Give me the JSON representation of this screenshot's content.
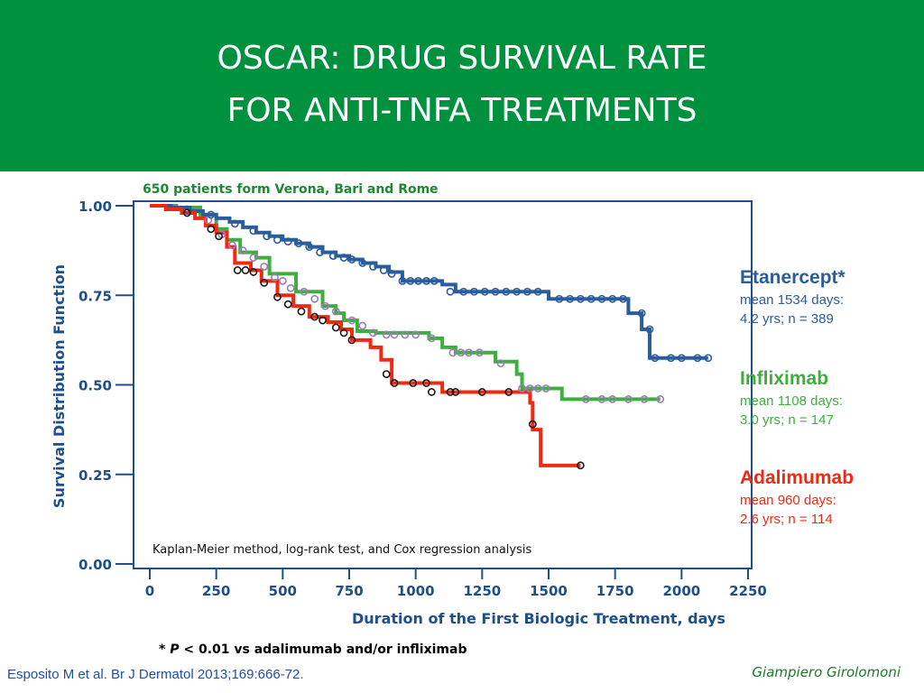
{
  "slide": {
    "title_line1": "OSCAR: DRUG SURVIVAL RATE",
    "title_line2": "FOR ANTI-TNFA TREATMENTS",
    "subtitle": "650 patients form Verona, Bari and Rome",
    "method_note": "Kaplan-Meier method, log-rank test, and Cox regression analysis",
    "footnote_prefix": "* ",
    "footnote_p": "P",
    "footnote_rest": " < 0.01 vs adalimumab and/or infliximab",
    "citation": "Esposito M et al. Br J Dermatol 2013;169:666-72.",
    "presenter": "Giampiero Girolomoni",
    "colors": {
      "banner": "#00913f",
      "axis": "#1f4f8a",
      "etanercept": "#2a5d9c",
      "infliximab": "#3fae3f",
      "adalimumab": "#f02a12",
      "censor_infliximab": "#9b7cc0"
    }
  },
  "chart_data": {
    "type": "line",
    "subtype": "kaplan-meier step",
    "xlabel": "Duration of the First Biologic Treatment, days",
    "ylabel": "Survival Distribution Function",
    "xlim": [
      0,
      2250
    ],
    "ylim": [
      0,
      1
    ],
    "x_ticks": [
      "0",
      "250",
      "500",
      "750",
      "1000",
      "1250",
      "1500",
      "1750",
      "2000",
      "2250"
    ],
    "y_ticks": [
      "0.00",
      "0.25",
      "0.50",
      "0.75",
      "1.00"
    ],
    "series": [
      {
        "name": "Etanercept*",
        "detail1": "mean 1534 days:",
        "detail2": "4.2 yrs; n = 389",
        "color": "#2a5d9c",
        "steps": [
          [
            0,
            1.0
          ],
          [
            80,
            0.995
          ],
          [
            150,
            0.985
          ],
          [
            200,
            0.975
          ],
          [
            250,
            0.965
          ],
          [
            300,
            0.955
          ],
          [
            350,
            0.94
          ],
          [
            400,
            0.925
          ],
          [
            450,
            0.915
          ],
          [
            500,
            0.905
          ],
          [
            550,
            0.895
          ],
          [
            600,
            0.885
          ],
          [
            650,
            0.87
          ],
          [
            700,
            0.86
          ],
          [
            750,
            0.85
          ],
          [
            800,
            0.84
          ],
          [
            850,
            0.83
          ],
          [
            900,
            0.815
          ],
          [
            950,
            0.79
          ],
          [
            1100,
            0.78
          ],
          [
            1150,
            0.76
          ],
          [
            1500,
            0.74
          ],
          [
            1800,
            0.7
          ],
          [
            1850,
            0.655
          ],
          [
            1880,
            0.575
          ],
          [
            2100,
            0.575
          ]
        ],
        "censors": [
          [
            140,
            0.99
          ],
          [
            230,
            0.975
          ],
          [
            320,
            0.95
          ],
          [
            390,
            0.93
          ],
          [
            440,
            0.915
          ],
          [
            480,
            0.905
          ],
          [
            520,
            0.9
          ],
          [
            560,
            0.895
          ],
          [
            600,
            0.885
          ],
          [
            640,
            0.87
          ],
          [
            690,
            0.86
          ],
          [
            730,
            0.855
          ],
          [
            760,
            0.85
          ],
          [
            800,
            0.84
          ],
          [
            840,
            0.83
          ],
          [
            880,
            0.82
          ],
          [
            910,
            0.81
          ],
          [
            950,
            0.79
          ],
          [
            980,
            0.79
          ],
          [
            1010,
            0.79
          ],
          [
            1040,
            0.79
          ],
          [
            1070,
            0.79
          ],
          [
            1130,
            0.76
          ],
          [
            1180,
            0.76
          ],
          [
            1220,
            0.76
          ],
          [
            1260,
            0.76
          ],
          [
            1300,
            0.76
          ],
          [
            1340,
            0.76
          ],
          [
            1380,
            0.76
          ],
          [
            1420,
            0.76
          ],
          [
            1460,
            0.76
          ],
          [
            1540,
            0.74
          ],
          [
            1580,
            0.74
          ],
          [
            1620,
            0.74
          ],
          [
            1660,
            0.74
          ],
          [
            1700,
            0.74
          ],
          [
            1740,
            0.74
          ],
          [
            1780,
            0.74
          ],
          [
            1850,
            0.7
          ],
          [
            1880,
            0.655
          ],
          [
            1900,
            0.575
          ],
          [
            1960,
            0.575
          ],
          [
            2000,
            0.575
          ],
          [
            2060,
            0.575
          ],
          [
            2100,
            0.575
          ]
        ]
      },
      {
        "name": "Infliximab",
        "detail1": "mean 1108 days:",
        "detail2": "3.0 yrs; n = 147",
        "color": "#3fae3f",
        "censor_color": "#9b7cc0",
        "steps": [
          [
            0,
            1.0
          ],
          [
            100,
            0.995
          ],
          [
            190,
            0.975
          ],
          [
            250,
            0.935
          ],
          [
            290,
            0.905
          ],
          [
            340,
            0.87
          ],
          [
            400,
            0.855
          ],
          [
            450,
            0.81
          ],
          [
            550,
            0.76
          ],
          [
            650,
            0.72
          ],
          [
            700,
            0.7
          ],
          [
            730,
            0.68
          ],
          [
            780,
            0.65
          ],
          [
            850,
            0.645
          ],
          [
            1050,
            0.63
          ],
          [
            1100,
            0.605
          ],
          [
            1150,
            0.59
          ],
          [
            1300,
            0.565
          ],
          [
            1380,
            0.53
          ],
          [
            1400,
            0.49
          ],
          [
            1550,
            0.46
          ],
          [
            1920,
            0.46
          ]
        ],
        "censors": [
          [
            220,
            0.96
          ],
          [
            270,
            0.92
          ],
          [
            310,
            0.89
          ],
          [
            350,
            0.875
          ],
          [
            390,
            0.855
          ],
          [
            430,
            0.83
          ],
          [
            470,
            0.8
          ],
          [
            500,
            0.79
          ],
          [
            530,
            0.77
          ],
          [
            580,
            0.76
          ],
          [
            620,
            0.74
          ],
          [
            660,
            0.72
          ],
          [
            700,
            0.705
          ],
          [
            760,
            0.68
          ],
          [
            800,
            0.665
          ],
          [
            840,
            0.645
          ],
          [
            890,
            0.64
          ],
          [
            920,
            0.64
          ],
          [
            960,
            0.64
          ],
          [
            1000,
            0.64
          ],
          [
            1060,
            0.63
          ],
          [
            1140,
            0.59
          ],
          [
            1170,
            0.59
          ],
          [
            1200,
            0.59
          ],
          [
            1240,
            0.59
          ],
          [
            1320,
            0.56
          ],
          [
            1400,
            0.49
          ],
          [
            1430,
            0.49
          ],
          [
            1460,
            0.49
          ],
          [
            1490,
            0.49
          ],
          [
            1640,
            0.46
          ],
          [
            1700,
            0.46
          ],
          [
            1740,
            0.46
          ],
          [
            1800,
            0.46
          ],
          [
            1860,
            0.46
          ],
          [
            1920,
            0.46
          ]
        ]
      },
      {
        "name": "Adalimumab",
        "detail1": "mean 960 days:",
        "detail2": "2.6 yrs; n = 114",
        "color": "#f02a12",
        "steps": [
          [
            0,
            1.0
          ],
          [
            60,
            0.99
          ],
          [
            120,
            0.98
          ],
          [
            170,
            0.965
          ],
          [
            210,
            0.945
          ],
          [
            250,
            0.925
          ],
          [
            290,
            0.885
          ],
          [
            320,
            0.84
          ],
          [
            380,
            0.82
          ],
          [
            420,
            0.79
          ],
          [
            480,
            0.75
          ],
          [
            540,
            0.72
          ],
          [
            600,
            0.69
          ],
          [
            670,
            0.675
          ],
          [
            720,
            0.655
          ],
          [
            760,
            0.625
          ],
          [
            830,
            0.605
          ],
          [
            870,
            0.57
          ],
          [
            910,
            0.505
          ],
          [
            1100,
            0.48
          ],
          [
            1430,
            0.45
          ],
          [
            1440,
            0.375
          ],
          [
            1470,
            0.275
          ],
          [
            1620,
            0.275
          ]
        ],
        "censors": [
          [
            140,
            0.98
          ],
          [
            230,
            0.935
          ],
          [
            260,
            0.915
          ],
          [
            330,
            0.82
          ],
          [
            360,
            0.82
          ],
          [
            390,
            0.815
          ],
          [
            430,
            0.785
          ],
          [
            480,
            0.745
          ],
          [
            520,
            0.725
          ],
          [
            570,
            0.705
          ],
          [
            620,
            0.69
          ],
          [
            650,
            0.68
          ],
          [
            700,
            0.66
          ],
          [
            730,
            0.645
          ],
          [
            760,
            0.625
          ],
          [
            890,
            0.53
          ],
          [
            920,
            0.505
          ],
          [
            990,
            0.505
          ],
          [
            1040,
            0.505
          ],
          [
            1060,
            0.48
          ],
          [
            1130,
            0.48
          ],
          [
            1150,
            0.48
          ],
          [
            1250,
            0.48
          ],
          [
            1350,
            0.48
          ],
          [
            1440,
            0.39
          ],
          [
            1620,
            0.275
          ]
        ]
      }
    ]
  }
}
